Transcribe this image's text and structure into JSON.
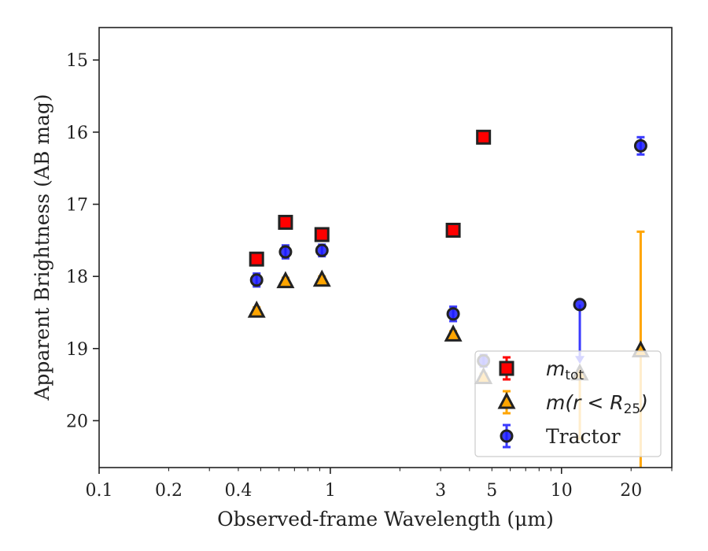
{
  "chart_data": {
    "type": "scatter",
    "xlabel": "Observed-frame Wavelength (μm)",
    "ylabel": "Apparent Brightness (AB mag)",
    "xscale": "log",
    "xlim": [
      0.1,
      30
    ],
    "ylim": [
      20.65,
      14.55
    ],
    "y_inverted": true,
    "xticks": [
      {
        "value": 0.1,
        "label": "0.1"
      },
      {
        "value": 0.2,
        "label": "0.2"
      },
      {
        "value": 0.4,
        "label": "0.4"
      },
      {
        "value": 1,
        "label": "1"
      },
      {
        "value": 3,
        "label": "3"
      },
      {
        "value": 5,
        "label": "5"
      },
      {
        "value": 10,
        "label": "10"
      },
      {
        "value": 20,
        "label": "20"
      }
    ],
    "yticks": [
      {
        "value": 15,
        "label": "15"
      },
      {
        "value": 16,
        "label": "16"
      },
      {
        "value": 17,
        "label": "17"
      },
      {
        "value": 18,
        "label": "18"
      },
      {
        "value": 19,
        "label": "19"
      },
      {
        "value": 20,
        "label": "20"
      }
    ],
    "legend_position": "lower-right",
    "series": [
      {
        "key": "mtot",
        "legend_prefix": "m",
        "legend_sub": "tot",
        "legend_suffix": "",
        "marker": "square",
        "color": "#ff0000",
        "edge_color": "#222222",
        "errbar_color": "#ff0000",
        "points": [
          {
            "x": 0.48,
            "y": 17.76,
            "err": 0.07
          },
          {
            "x": 0.64,
            "y": 17.25,
            "err": 0.07
          },
          {
            "x": 0.92,
            "y": 17.42,
            "err": 0.07
          },
          {
            "x": 3.4,
            "y": 17.36,
            "err": 0.07
          },
          {
            "x": 4.6,
            "y": 16.07,
            "err": 0.07
          }
        ]
      },
      {
        "key": "mr25",
        "legend_prefix": "m(r < R",
        "legend_sub": "25",
        "legend_suffix": ")",
        "marker": "triangle",
        "color": "#ffa500",
        "edge_color": "#222222",
        "errbar_color": "#ffa500",
        "points": [
          {
            "x": 0.48,
            "y": 18.48,
            "err": 0.05
          },
          {
            "x": 0.64,
            "y": 18.07,
            "err": 0.05
          },
          {
            "x": 0.92,
            "y": 18.05,
            "err": 0.05
          },
          {
            "x": 3.4,
            "y": 18.81,
            "err": 0.05
          },
          {
            "x": 4.6,
            "y": 19.4,
            "err": 0.05
          },
          {
            "x": 12,
            "y": 19.35,
            "err_low": 0.9,
            "err_high": 0.0
          },
          {
            "x": 22,
            "y": 19.03,
            "err_low": 3.83,
            "err_high": 1.65
          }
        ]
      },
      {
        "key": "tractor",
        "legend_prefix": "Tractor",
        "legend_sub": "",
        "legend_suffix": "",
        "marker": "circle",
        "color": "#1a1aff",
        "edge_color": "#222222",
        "errbar_color": "#3a3aff",
        "points": [
          {
            "x": 0.48,
            "y": 18.05,
            "err": 0.09
          },
          {
            "x": 0.64,
            "y": 17.66,
            "err": 0.09
          },
          {
            "x": 0.92,
            "y": 17.64,
            "err": 0.08
          },
          {
            "x": 3.4,
            "y": 18.52,
            "err": 0.1
          },
          {
            "x": 4.6,
            "y": 19.17,
            "err": 0.08
          },
          {
            "x": 12,
            "y": 18.39,
            "err_low": 0.0,
            "err_high": 0.8,
            "upper_limit_arrow": true
          },
          {
            "x": 22,
            "y": 16.19,
            "err": 0.12
          }
        ]
      }
    ],
    "legend_entries": [
      {
        "series": "mtot",
        "prefix": "m",
        "sub": "tot",
        "suffix": ""
      },
      {
        "series": "mr25",
        "prefix": "m(r < R",
        "sub": "25",
        "suffix": ")"
      },
      {
        "series": "tractor",
        "prefix": "Tractor",
        "sub": "",
        "suffix": ""
      }
    ]
  }
}
